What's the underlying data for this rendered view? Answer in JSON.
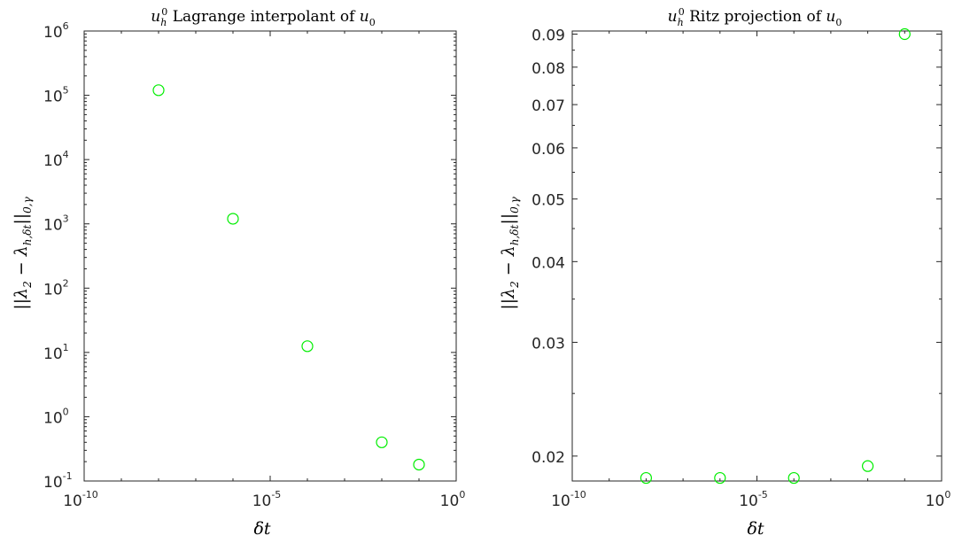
{
  "chart_data": [
    {
      "type": "scatter",
      "title": "u_h^0 Lagrange interpolant of u_0",
      "xlabel": "δt",
      "ylabel": "||λ_2 − λ_{h,δt}||_{0,γ}",
      "x_scale": "log",
      "y_scale": "log",
      "xlim": [
        1e-10,
        1
      ],
      "ylim": [
        0.1,
        1000000
      ],
      "x_ticks": [
        {
          "value": 1e-10,
          "base": "10",
          "exp": "-10"
        },
        {
          "value": 1e-05,
          "base": "10",
          "exp": "-5"
        },
        {
          "value": 1,
          "base": "10",
          "exp": "0"
        }
      ],
      "y_ticks": [
        {
          "value": 0.1,
          "base": "10",
          "exp": "-1"
        },
        {
          "value": 1,
          "base": "10",
          "exp": "0"
        },
        {
          "value": 10,
          "base": "10",
          "exp": "1"
        },
        {
          "value": 100,
          "base": "10",
          "exp": "2"
        },
        {
          "value": 1000,
          "base": "10",
          "exp": "3"
        },
        {
          "value": 10000,
          "base": "10",
          "exp": "4"
        },
        {
          "value": 100000,
          "base": "10",
          "exp": "5"
        },
        {
          "value": 1000000,
          "base": "10",
          "exp": "6"
        }
      ],
      "marker_color": "#00ee00",
      "grid": false,
      "points": [
        {
          "x": 1e-08,
          "y": 120000
        },
        {
          "x": 1e-06,
          "y": 1200
        },
        {
          "x": 0.0001,
          "y": 12.5
        },
        {
          "x": 0.01,
          "y": 0.4
        },
        {
          "x": 0.1,
          "y": 0.18
        }
      ]
    },
    {
      "type": "scatter",
      "title": "u_h^0 Ritz projection of u_0",
      "xlabel": "δt",
      "ylabel": "||λ_2 − λ_{h,δt}||_{0,γ}",
      "x_scale": "log",
      "y_scale": "log",
      "xlim": [
        1e-10,
        1
      ],
      "ylim": [
        0.0183,
        0.091
      ],
      "x_ticks": [
        {
          "value": 1e-10,
          "base": "10",
          "exp": "-10"
        },
        {
          "value": 1e-05,
          "base": "10",
          "exp": "-5"
        },
        {
          "value": 1,
          "base": "10",
          "exp": "0"
        }
      ],
      "y_ticks": [
        {
          "value": 0.02,
          "label": "0.02"
        },
        {
          "value": 0.03,
          "label": "0.03"
        },
        {
          "value": 0.04,
          "label": "0.04"
        },
        {
          "value": 0.05,
          "label": "0.05"
        },
        {
          "value": 0.06,
          "label": "0.06"
        },
        {
          "value": 0.07,
          "label": "0.07"
        },
        {
          "value": 0.08,
          "label": "0.08"
        },
        {
          "value": 0.09,
          "label": "0.09"
        }
      ],
      "marker_color": "#00ee00",
      "grid": false,
      "points": [
        {
          "x": 1e-08,
          "y": 0.0185
        },
        {
          "x": 1e-06,
          "y": 0.0185
        },
        {
          "x": 0.0001,
          "y": 0.0185
        },
        {
          "x": 0.01,
          "y": 0.0193
        },
        {
          "x": 0.1,
          "y": 0.09
        }
      ]
    }
  ]
}
